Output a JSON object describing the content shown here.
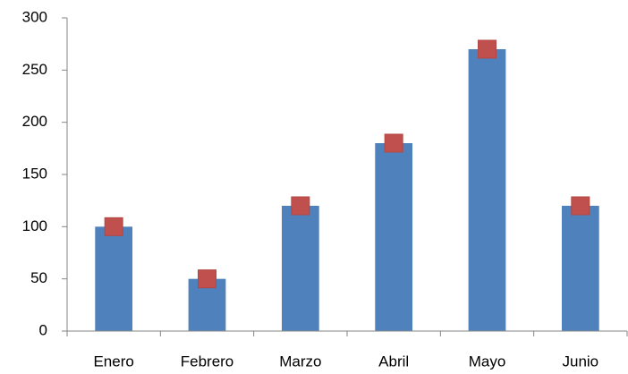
{
  "chart_data": {
    "type": "bar",
    "categories": [
      "Enero",
      "Febrero",
      "Marzo",
      "Abril",
      "Mayo",
      "Junio"
    ],
    "series": [
      {
        "type": "bar",
        "color": "#4f81bd",
        "values": [
          100,
          50,
          120,
          180,
          270,
          120
        ]
      },
      {
        "type": "scatter",
        "color": "#c0504d",
        "values": [
          100,
          50,
          120,
          180,
          270,
          120
        ]
      }
    ],
    "ylim": [
      0,
      300
    ],
    "yticks": [
      0,
      50,
      100,
      150,
      200,
      250,
      300
    ],
    "grid": false
  }
}
